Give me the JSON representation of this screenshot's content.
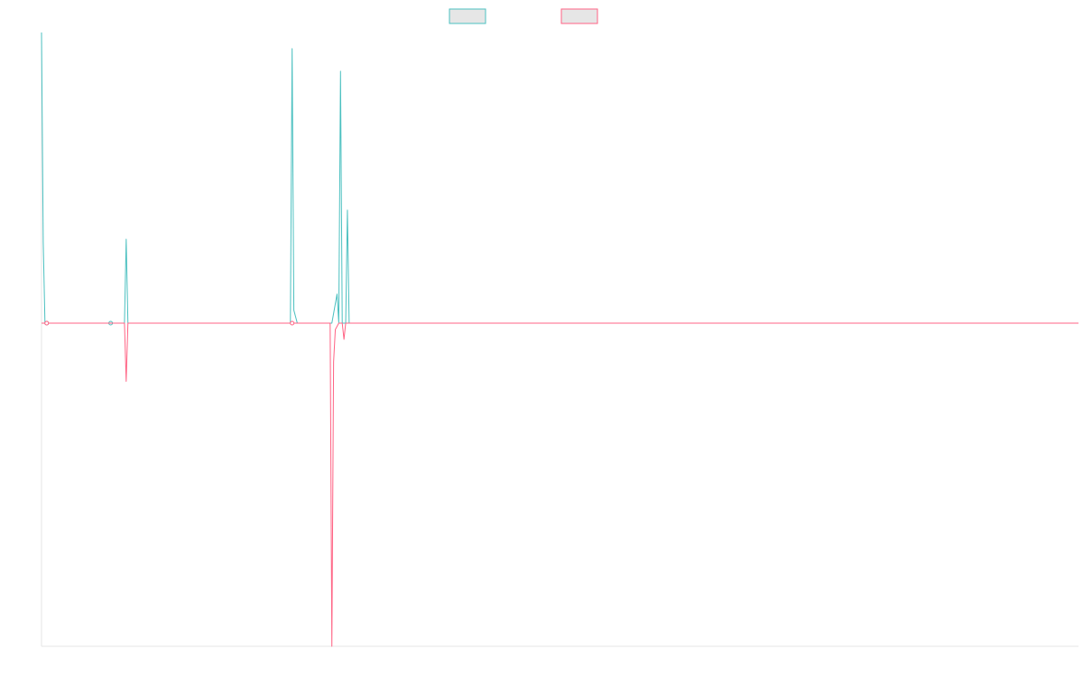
{
  "chart_data": {
    "type": "line",
    "title": "",
    "xlabel": "",
    "ylabel": "",
    "grid": false,
    "legend_position": "top-center",
    "x_range": [
      0,
      300
    ],
    "ylim": [
      -1.0,
      0.9
    ],
    "baseline": 0,
    "series": [
      {
        "color": "#4bc0c0",
        "legend_fill": "#e6e6e6",
        "points": [
          [
            0,
            0.9
          ],
          [
            0.5,
            0.25
          ],
          [
            1,
            0
          ],
          [
            19,
            0
          ],
          [
            24,
            0
          ],
          [
            24.5,
            0.26
          ],
          [
            25,
            0
          ],
          [
            72,
            0
          ],
          [
            72.5,
            0.85
          ],
          [
            73,
            0.04
          ],
          [
            74,
            0
          ],
          [
            84,
            0
          ],
          [
            85.5,
            0.09
          ],
          [
            86,
            0
          ],
          [
            86.5,
            0.78
          ],
          [
            87,
            0
          ],
          [
            88,
            0
          ],
          [
            88.5,
            0.35
          ],
          [
            89,
            0
          ],
          [
            300,
            0
          ]
        ],
        "markers": [
          [
            1.5,
            0
          ],
          [
            20,
            0
          ]
        ]
      },
      {
        "color": "#ff6384",
        "legend_fill": "#e6e6e6",
        "points": [
          [
            0,
            0
          ],
          [
            19,
            0
          ],
          [
            24,
            0
          ],
          [
            24.5,
            -0.18
          ],
          [
            25,
            0
          ],
          [
            72,
            0
          ],
          [
            83.5,
            0
          ],
          [
            84,
            -1.0
          ],
          [
            84.5,
            -0.12
          ],
          [
            85,
            -0.02
          ],
          [
            86,
            0
          ],
          [
            87,
            0
          ],
          [
            87.5,
            -0.05
          ],
          [
            88,
            0
          ],
          [
            300,
            0
          ]
        ],
        "markers": [
          [
            1.5,
            0
          ],
          [
            72.5,
            0
          ]
        ]
      }
    ]
  }
}
